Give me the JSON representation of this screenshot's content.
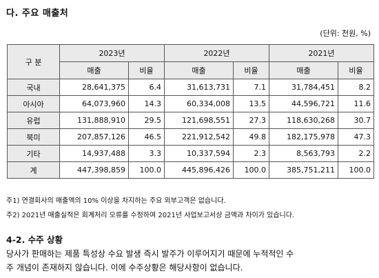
{
  "heading": "다. 주요 매출처",
  "unit": "(단위: 천원, %)",
  "table": {
    "division_label": "구 분",
    "years": [
      "2023년",
      "2022년",
      "2021년"
    ],
    "sub_headers": [
      "매출",
      "비율"
    ],
    "rows": [
      {
        "label": "국내",
        "values": [
          "28,641,375",
          "6.4",
          "31,613,731",
          "7.1",
          "31,784,451",
          "8.2"
        ]
      },
      {
        "label": "아시아",
        "values": [
          "64,073,960",
          "14.3",
          "60,334,008",
          "13.5",
          "44,596,721",
          "11.6"
        ]
      },
      {
        "label": "유럽",
        "values": [
          "131,888,910",
          "29.5",
          "121,698,551",
          "27.3",
          "118,630,268",
          "30.7"
        ]
      },
      {
        "label": "북미",
        "values": [
          "207,857,126",
          "46.5",
          "221,912,542",
          "49.8",
          "182,175,978",
          "47.3"
        ]
      },
      {
        "label": "기타",
        "values": [
          "14,937,488",
          "3.3",
          "10,337,594",
          "2.3",
          "8,563,793",
          "2.2"
        ]
      },
      {
        "label": "계",
        "values": [
          "447,398,859",
          "100.0",
          "445,896,426",
          "100.0",
          "385,751,211",
          "100.0"
        ]
      }
    ]
  },
  "notes": [
    "주1) 연결회사의 매출액의 10% 이상을 차지하는 주요 외부고객은 없습니다.",
    "주2) 2021년 매출실적은 회계처리 오류를 수정하여 2021년 사업보고서상 금액과 차이가 있습니다."
  ],
  "section": {
    "heading": "4-2. 수주 상황",
    "lines": [
      "당사가 판매하는 제품 특성상 수요 발생 즉시 발주가 이루어지기 때문에 누적적인 수",
      "주 개념이 존재하지 않습니다. 이에  수주상황은 해당사항이 없습니다."
    ]
  }
}
